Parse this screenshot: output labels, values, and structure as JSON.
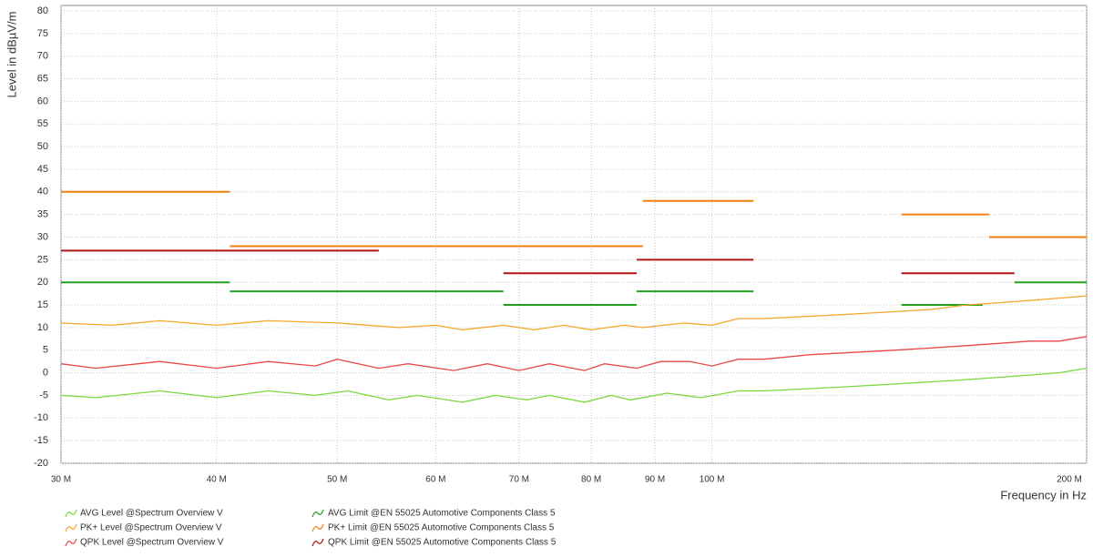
{
  "chart_data": {
    "type": "line",
    "x_label": "Frequency in Hz",
    "y_label": "Level in dBµV/m",
    "xlog": true,
    "grid": true,
    "xlim": [
      30,
      200
    ],
    "ylim": [
      -20,
      80
    ],
    "xticks": [
      {
        "value": 30,
        "label": "30 M"
      },
      {
        "value": 40,
        "label": "40 M"
      },
      {
        "value": 50,
        "label": "50 M"
      },
      {
        "value": 60,
        "label": "60 M"
      },
      {
        "value": 70,
        "label": "70 M"
      },
      {
        "value": 80,
        "label": "80 M"
      },
      {
        "value": 90,
        "label": "90 M"
      },
      {
        "value": 100,
        "label": "100 M"
      },
      {
        "value": 200,
        "label": "200 M"
      }
    ],
    "yticks": [
      -20,
      -15,
      -10,
      -5,
      0,
      5,
      10,
      15,
      20,
      25,
      30,
      35,
      40,
      45,
      50,
      55,
      60,
      65,
      70,
      75,
      80
    ],
    "series": [
      {
        "name": "AVG Level @Spectrum Overview V",
        "color": "#7ad83c",
        "x": [
          30,
          32,
          36,
          40,
          44,
          48,
          51,
          55,
          58,
          63,
          67,
          71,
          74,
          79,
          83,
          86,
          92,
          98,
          105,
          110,
          120,
          130,
          140,
          150,
          160,
          170,
          180,
          190,
          200
        ],
        "values": [
          -5,
          -5.5,
          -4,
          -5.5,
          -4,
          -5,
          -4,
          -6,
          -5,
          -6.5,
          -5,
          -6,
          -5,
          -6.5,
          -5,
          -6,
          -4.5,
          -5.5,
          -4,
          -4,
          -3.5,
          -3,
          -2.5,
          -2,
          -1.5,
          -1,
          -0.5,
          0,
          1
        ]
      },
      {
        "name": "PK+ Level @Spectrum Overview V",
        "color": "#f7a52a",
        "x": [
          30,
          33,
          36,
          40,
          44,
          50,
          56,
          60,
          63,
          68,
          72,
          76,
          80,
          85,
          88,
          95,
          100,
          105,
          110,
          120,
          130,
          140,
          150,
          160,
          170,
          180,
          190,
          200
        ],
        "values": [
          11,
          10.5,
          11.5,
          10.5,
          11.5,
          11,
          10,
          10.5,
          9.5,
          10.5,
          9.5,
          10.5,
          9.5,
          10.5,
          10,
          11,
          10.5,
          12,
          12,
          12.5,
          13,
          13.5,
          14,
          15,
          15.5,
          16,
          16.5,
          17
        ]
      },
      {
        "name": "QPK Level @Spectrum Overview V",
        "color": "#e84848",
        "x": [
          30,
          32,
          36,
          40,
          44,
          48,
          50,
          54,
          57,
          62,
          66,
          70,
          74,
          79,
          82,
          87,
          91,
          96,
          100,
          105,
          110,
          115,
          120,
          130,
          140,
          150,
          160,
          170,
          180,
          190,
          200
        ],
        "values": [
          2,
          1,
          2.5,
          1,
          2.5,
          1.5,
          3,
          1,
          2,
          0.5,
          2,
          0.5,
          2,
          0.5,
          2,
          1,
          2.5,
          2.5,
          1.5,
          3,
          3,
          3.5,
          4,
          4.5,
          5,
          5.5,
          6,
          6.5,
          7,
          7,
          8
        ]
      }
    ],
    "limits": [
      {
        "name": "AVG Limit @EN 55025 Automotive Components Class 5",
        "color": "#22a020",
        "segments": [
          {
            "start": 30,
            "end": 41,
            "value": 20
          },
          {
            "start": 41,
            "end": 68,
            "value": 18
          },
          {
            "start": 68,
            "end": 87,
            "value": 15
          },
          {
            "start": 87,
            "end": 108,
            "value": 18
          },
          {
            "start": 142,
            "end": 165,
            "value": 15
          },
          {
            "start": 175,
            "end": 200,
            "value": 20
          }
        ]
      },
      {
        "name": "PK+ Limit @EN 55025 Automotive Components Class 5",
        "color": "#f08010",
        "segments": [
          {
            "start": 30,
            "end": 41,
            "value": 40
          },
          {
            "start": 41,
            "end": 88,
            "value": 28
          },
          {
            "start": 88,
            "end": 108,
            "value": 38
          },
          {
            "start": 142,
            "end": 167,
            "value": 35
          },
          {
            "start": 167,
            "end": 200,
            "value": 30
          }
        ]
      },
      {
        "name": "QPK Limit @EN 55025 Automotive Components Class 5",
        "color": "#b01414",
        "segments": [
          {
            "start": 30,
            "end": 54,
            "value": 27
          },
          {
            "start": 68,
            "end": 87,
            "value": 22
          },
          {
            "start": 87,
            "end": 108,
            "value": 25
          },
          {
            "start": 142,
            "end": 175,
            "value": 22
          }
        ]
      }
    ]
  }
}
